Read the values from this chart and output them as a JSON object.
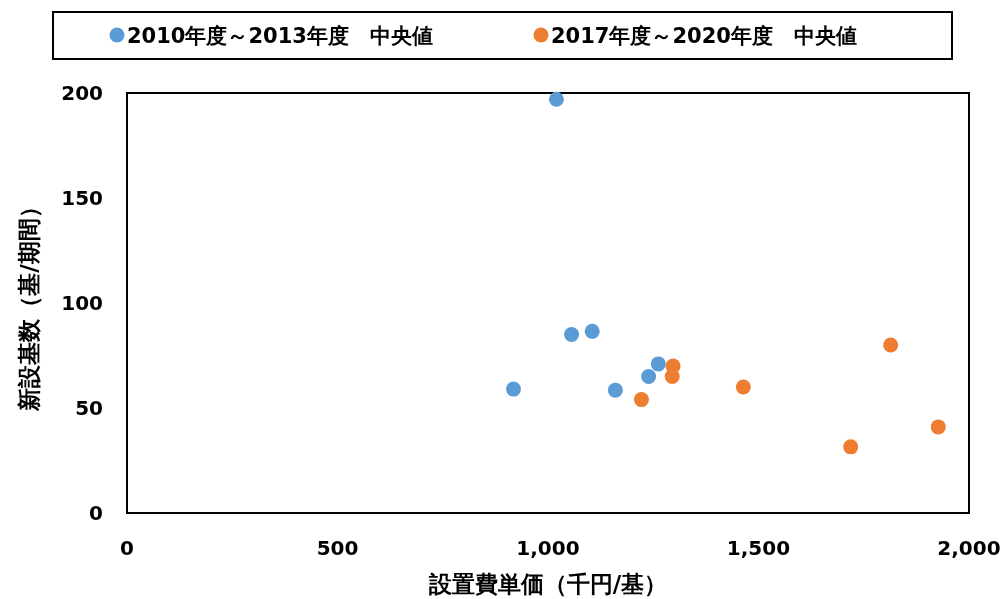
{
  "chart_data": {
    "type": "scatter",
    "xlabel": "設置費単価（千円/基）",
    "ylabel": "新設基数（基/期間）",
    "xlim": [
      0,
      2000
    ],
    "ylim": [
      0,
      200
    ],
    "xticks": [
      0,
      500,
      {
        "value": 1000,
        "label": "1,000"
      },
      {
        "value": 1500,
        "label": "1,500"
      },
      {
        "value": 2000,
        "label": "2,000"
      }
    ],
    "yticks": [
      0,
      50,
      100,
      150,
      200
    ],
    "legend": "top",
    "marker": "circle",
    "grid": false,
    "series": [
      {
        "name": "2010年度～2013年度　中央値",
        "color": "#5b9bd5",
        "x": [
          918,
          1020,
          1056,
          1105,
          1160,
          1239,
          1262
        ],
        "values": [
          59,
          197,
          85,
          86.5,
          58.5,
          65,
          71
        ]
      },
      {
        "name": "2017年度～2020年度　中央値",
        "color": "#ed7d31",
        "x": [
          1222,
          1297,
          1295,
          1464,
          1719,
          1814,
          1927
        ],
        "values": [
          54,
          70,
          65,
          60,
          31.5,
          80,
          41
        ]
      }
    ]
  }
}
